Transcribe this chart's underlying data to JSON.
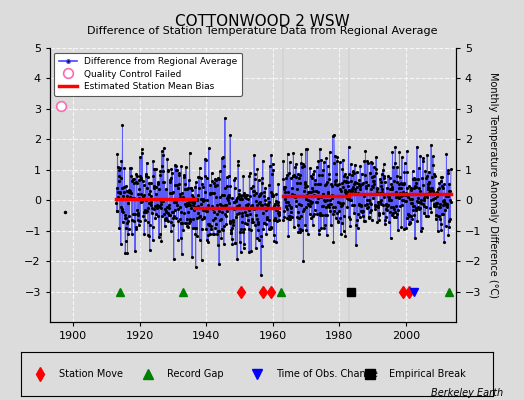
{
  "title": "COTTONWOOD 2 WSW",
  "subtitle": "Difference of Station Temperature Data from Regional Average",
  "ylabel": "Monthly Temperature Anomaly Difference (°C)",
  "xlim": [
    1893,
    2015
  ],
  "ylim": [
    -4,
    5
  ],
  "yticks_left": [
    -3,
    -2,
    -1,
    0,
    1,
    2,
    3,
    4,
    5
  ],
  "yticks_right": [
    -3,
    -2,
    -1,
    0,
    1,
    2,
    3,
    4,
    5
  ],
  "xticks": [
    1900,
    1920,
    1940,
    1960,
    1980,
    2000
  ],
  "bg_color": "#dcdcdc",
  "plot_bg_color": "#dcdcdc",
  "grid_color": "#ffffff",
  "segments": [
    {
      "start": 1913.0,
      "end": 1936.5,
      "bias": 0.05,
      "std": 0.75
    },
    {
      "start": 1936.5,
      "end": 1962.0,
      "bias": -0.25,
      "std": 0.75
    },
    {
      "start": 1963.0,
      "end": 1983.0,
      "bias": 0.15,
      "std": 0.75
    },
    {
      "start": 1983.0,
      "end": 2013.5,
      "bias": 0.2,
      "std": 0.65
    }
  ],
  "isolated_points": [
    {
      "year": 1896.5,
      "value": 3.1,
      "qc_failed": true
    },
    {
      "year": 1897.5,
      "value": -0.4,
      "qc_failed": false
    }
  ],
  "vertical_lines": [
    1963.0,
    1983.0
  ],
  "station_moves": [
    1950.5,
    1957.0,
    1959.5,
    1999.0,
    2001.0
  ],
  "record_gaps": [
    1914.0,
    1933.0,
    1962.5,
    2013.0
  ],
  "obs_changes": [
    2002.5
  ],
  "empirical_breaks": [
    1983.5
  ],
  "marker_y": -3.0,
  "seed": 12345
}
